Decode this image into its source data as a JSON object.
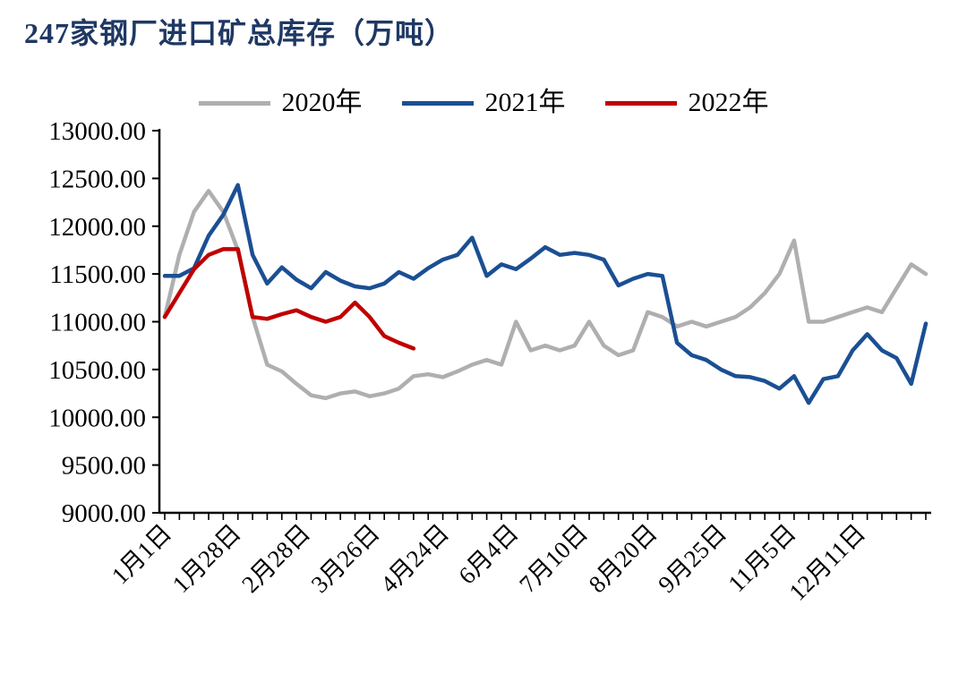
{
  "title": "247家钢厂进口矿总库存（万吨）",
  "title_color": "#1F3864",
  "chart_data": {
    "type": "line",
    "title": "247家钢厂进口矿总库存（万吨）",
    "xlabel": "",
    "ylabel": "",
    "ylim": [
      9000,
      13000
    ],
    "y_tick_step": 500,
    "grid": false,
    "legend_position": "top",
    "y_tick_labels": [
      "9000.00",
      "9500.00",
      "10000.00",
      "10500.00",
      "11000.00",
      "11500.00",
      "12000.00",
      "12500.00",
      "13000.00"
    ],
    "x_tick_labels": [
      "1月1日",
      "1月28日",
      "2月28日",
      "3月26日",
      "4月24日",
      "6月4日",
      "7月10日",
      "8月20日",
      "9月25日",
      "11月5日",
      "12月11日"
    ],
    "series": [
      {
        "name": "2020年",
        "color": "#AFAFAF",
        "values": [
          11050,
          11700,
          12150,
          12370,
          12150,
          11750,
          11050,
          10550,
          10480,
          10350,
          10230,
          10200,
          10250,
          10270,
          10220,
          10250,
          10300,
          10430,
          10450,
          10420,
          10480,
          10550,
          10600,
          10550,
          11000,
          10700,
          10750,
          10700,
          10750,
          11000,
          10750,
          10650,
          10700,
          11100,
          11050,
          10950,
          11000,
          10950,
          11000,
          11050,
          11150,
          11300,
          11500,
          11850,
          11000,
          11000,
          11050,
          11100,
          11150,
          11100,
          11350,
          11600,
          11500
        ]
      },
      {
        "name": "2021年",
        "color": "#1B4F93",
        "values": [
          11480,
          11480,
          11560,
          11900,
          12120,
          12430,
          11700,
          11400,
          11570,
          11440,
          11350,
          11520,
          11430,
          11370,
          11350,
          11400,
          11520,
          11450,
          11560,
          11650,
          11700,
          11880,
          11480,
          11600,
          11550,
          11660,
          11780,
          11700,
          11720,
          11700,
          11650,
          11380,
          11450,
          11500,
          11480,
          10780,
          10650,
          10600,
          10500,
          10430,
          10420,
          10380,
          10300,
          10430,
          10150,
          10400,
          10430,
          10700,
          10870,
          10700,
          10620,
          10350,
          10980
        ]
      },
      {
        "name": "2022年",
        "color": "#C00000",
        "values": [
          11050,
          11300,
          11550,
          11700,
          11760,
          11760,
          11050,
          11030,
          11080,
          11120,
          11050,
          11000,
          11050,
          11200,
          11050,
          10850,
          10780,
          10720
        ]
      }
    ]
  }
}
